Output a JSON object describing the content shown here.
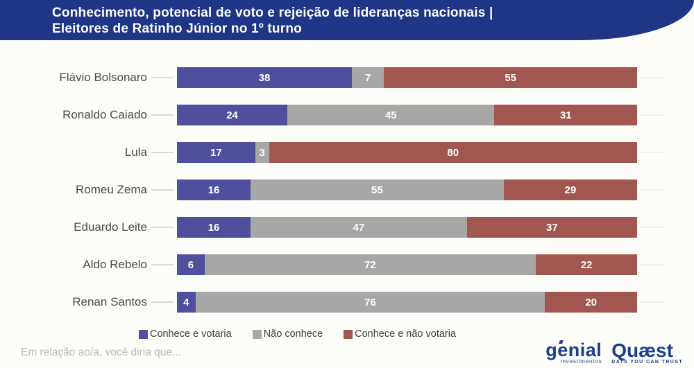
{
  "header": {
    "title_line1": "Conhecimento, potencial de voto e rejeição de lideranças nacionais |",
    "title_line2": "Eleitores de Ratinho Júnior no 1º turno"
  },
  "chart_data": {
    "type": "bar",
    "orientation": "horizontal",
    "stacked": true,
    "unit": "percent",
    "xlim": [
      0,
      100
    ],
    "grid": false,
    "value_labels": "inside-center",
    "legend_position": "bottom",
    "categories": [
      "Flávio Bolsonaro",
      "Ronaldo Caiado",
      "Lula",
      "Romeu Zema",
      "Eduardo Leite",
      "Aldo Rebelo",
      "Renan Santos"
    ],
    "series": [
      {
        "name": "Conhece e votaria",
        "color": "#504f9e",
        "values": [
          38,
          24,
          17,
          16,
          16,
          6,
          4
        ]
      },
      {
        "name": "Não conhece",
        "color": "#a7a7a7",
        "values": [
          7,
          45,
          3,
          55,
          47,
          72,
          76
        ]
      },
      {
        "name": "Conhece e não votaria",
        "color": "#a1574f",
        "values": [
          55,
          31,
          80,
          29,
          37,
          22,
          20
        ]
      }
    ]
  },
  "footer": {
    "question": "Em relação ao/a, você diria que...",
    "logos": {
      "genial": {
        "name": "genial",
        "tagline": "investimentos"
      },
      "quaest": {
        "name": "Quæst",
        "tagline": "DATA YOU CAN TRUST"
      }
    }
  },
  "colors": {
    "header_bg": "#1f3585",
    "background": "#fcfcf8",
    "logo_navy": "#1d3e8e",
    "label_text": "#4a4a4a",
    "value_text": "#ffffff"
  }
}
